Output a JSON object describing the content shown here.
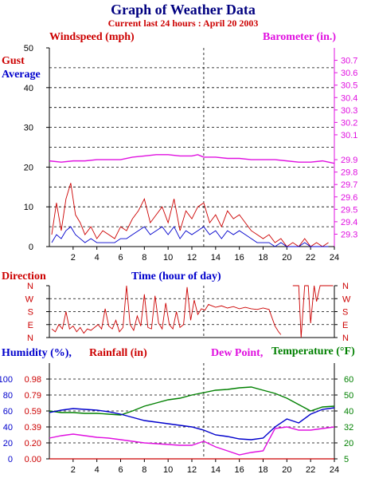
{
  "title": "Graph of Weather Data",
  "subtitle": "Current last 24 hours : April 20 2003",
  "colors": {
    "wind": "#cc0000",
    "avg": "#0000cc",
    "baro": "#e010e0",
    "humidity": "#0000cc",
    "rain": "#cc0000",
    "dew": "#e010e0",
    "temp": "#008000"
  },
  "chart_data": [
    {
      "type": "line",
      "title": "Windspeed / Barometer",
      "labels": {
        "left": "Windspeed (mph)",
        "right": "Barometer (in.)",
        "gust": "Gust",
        "average": "Average",
        "xlabel": "Time (hour of day)"
      },
      "x_ticks": [
        "2",
        "4",
        "6",
        "8",
        "10",
        "12",
        "14",
        "16",
        "18",
        "20",
        "22",
        "24"
      ],
      "y_left_ticks": [
        "0",
        "10",
        "20",
        "30",
        "40",
        "50"
      ],
      "y_right_ticks": [
        "29.3",
        "29.4",
        "29.5",
        "29.6",
        "29.7",
        "29.8",
        "29.9",
        "30.1",
        "30.2",
        "30.3",
        "30.4",
        "30.5",
        "30.6",
        "30.7"
      ],
      "xlim": [
        0,
        24
      ],
      "ylim_left": [
        0,
        50
      ],
      "ylim_right": [
        29.2,
        30.8
      ],
      "series": [
        {
          "name": "Gust",
          "x": [
            0.2,
            0.6,
            1.0,
            1.4,
            1.8,
            2.2,
            2.6,
            3.0,
            3.5,
            4.0,
            4.5,
            5.0,
            5.5,
            6.0,
            6.5,
            7.0,
            7.5,
            8.0,
            8.5,
            9.0,
            9.5,
            10.0,
            10.5,
            11.0,
            11.5,
            12.0,
            12.5,
            13.0,
            13.5,
            14.0,
            14.5,
            15.0,
            15.5,
            16.0,
            16.5,
            17.0,
            17.5,
            18.0,
            18.5,
            19.0,
            19.5,
            20.0,
            20.5,
            21.0,
            21.5,
            22.0,
            22.5,
            23.0,
            23.5
          ],
          "values": [
            3,
            11,
            4,
            12,
            16,
            8,
            6,
            3,
            5,
            2,
            4,
            3,
            2,
            5,
            4,
            7,
            9,
            12,
            6,
            8,
            10,
            6,
            12,
            4,
            9,
            7,
            10,
            11,
            6,
            8,
            5,
            9,
            7,
            8,
            6,
            4,
            3,
            2,
            3,
            1,
            2,
            0,
            1,
            0,
            2,
            0,
            1,
            0,
            1
          ]
        },
        {
          "name": "Average",
          "x": [
            0.2,
            0.6,
            1.0,
            1.4,
            1.8,
            2.2,
            2.6,
            3.0,
            3.5,
            4.0,
            4.5,
            5.0,
            5.5,
            6.0,
            6.5,
            7.0,
            7.5,
            8.0,
            8.5,
            9.0,
            9.5,
            10.0,
            10.5,
            11.0,
            11.5,
            12.0,
            12.5,
            13.0,
            13.5,
            14.0,
            14.5,
            15.0,
            15.5,
            16.0,
            16.5,
            17.0,
            17.5,
            18.0,
            18.5,
            19.0,
            19.5,
            20.0,
            20.5,
            21.0,
            21.5,
            22.0,
            22.5,
            23.0,
            23.5
          ],
          "values": [
            1,
            3,
            2,
            4,
            5,
            3,
            2,
            1,
            2,
            1,
            1,
            1,
            1,
            2,
            2,
            3,
            4,
            5,
            3,
            4,
            5,
            3,
            5,
            2,
            4,
            3,
            4,
            5,
            3,
            4,
            2,
            4,
            3,
            4,
            3,
            2,
            1,
            1,
            1,
            0,
            1,
            0,
            0,
            0,
            1,
            0,
            0,
            0,
            0
          ]
        },
        {
          "name": "Barometer",
          "x": [
            0,
            1,
            2,
            3,
            4,
            5,
            6,
            7,
            8,
            9,
            10,
            11,
            12,
            12.5,
            13,
            14,
            15,
            16,
            17,
            18,
            19,
            20,
            21,
            22,
            23,
            24
          ],
          "values": [
            29.89,
            29.88,
            29.89,
            29.89,
            29.9,
            29.9,
            29.9,
            29.92,
            29.93,
            29.94,
            29.94,
            29.93,
            29.93,
            29.94,
            29.92,
            29.92,
            29.91,
            29.91,
            29.9,
            29.9,
            29.9,
            29.89,
            29.88,
            29.88,
            29.89,
            29.87
          ]
        }
      ]
    },
    {
      "type": "line",
      "title": "Direction",
      "labels": {
        "left": "Direction",
        "xlabel": "Time (hour of day)"
      },
      "dir_ticks": [
        "N",
        "W",
        "S",
        "E",
        "N"
      ],
      "xlim": [
        0,
        24
      ],
      "ylim": [
        0,
        360
      ],
      "series": [
        {
          "name": "Direction",
          "x": [
            0.2,
            0.5,
            0.8,
            1.1,
            1.4,
            1.7,
            2.0,
            2.3,
            2.6,
            2.9,
            3.2,
            3.5,
            3.8,
            4.1,
            4.4,
            4.7,
            5.0,
            5.3,
            5.6,
            5.9,
            6.2,
            6.5,
            6.8,
            7.1,
            7.4,
            7.7,
            8.0,
            8.3,
            8.6,
            8.9,
            9.2,
            9.5,
            9.8,
            10.1,
            10.4,
            10.7,
            11.0,
            11.3,
            11.6,
            11.9,
            12.2,
            12.5,
            12.8,
            13.1,
            13.4,
            13.7,
            14.0,
            14.5,
            15.0,
            15.5,
            16.0,
            16.5,
            17.0,
            17.5,
            18.0,
            18.5,
            19.0,
            19.3,
            19.5
          ],
          "values": [
            60,
            40,
            90,
            60,
            180,
            60,
            80,
            40,
            70,
            30,
            60,
            50,
            70,
            90,
            60,
            200,
            80,
            60,
            120,
            40,
            70,
            360,
            90,
            50,
            150,
            80,
            300,
            70,
            60,
            290,
            100,
            60,
            240,
            90,
            60,
            180,
            70,
            90,
            350,
            120,
            260,
            160,
            200,
            190,
            230,
            220,
            210,
            220,
            205,
            215,
            200,
            210,
            200,
            195,
            205,
            195,
            80,
            40,
            20
          ]
        },
        {
          "name": "Direction (late)",
          "x": [
            20.5,
            20.8,
            21.0,
            21.2,
            21.5,
            21.8,
            22.0,
            22.3,
            22.5,
            22.8,
            23.0,
            23.3,
            23.6,
            23.9
          ],
          "values": [
            360,
            360,
            360,
            0,
            360,
            360,
            100,
            360,
            250,
            360,
            360,
            360,
            360,
            360
          ]
        }
      ]
    },
    {
      "type": "line",
      "title": "Humidity / Rainfall / Dew Point / Temperature",
      "labels": {
        "humidity": "Humidity (%),",
        "rainfall": "Rainfall (in)",
        "dew": "Dew Point,",
        "temp": "Temperature (°F)"
      },
      "x_ticks": [
        "2",
        "4",
        "6",
        "8",
        "10",
        "12",
        "14",
        "16",
        "18",
        "20",
        "22",
        "24"
      ],
      "humidity_ticks": [
        "0",
        "20",
        "40",
        "60",
        "80",
        "100"
      ],
      "rain_ticks": [
        "0.00",
        "0.20",
        "0.39",
        "0.59",
        "0.79",
        "0.98"
      ],
      "temp_ticks": [
        "5",
        "20",
        "32",
        "40",
        "50",
        "60"
      ],
      "xlim": [
        0,
        24
      ],
      "ylim_humidity": [
        0,
        120
      ],
      "series": [
        {
          "name": "Temperature",
          "x": [
            0,
            1,
            2,
            3,
            4,
            5,
            6,
            7,
            8,
            9,
            10,
            11,
            12,
            13,
            14,
            15,
            16,
            17,
            18,
            19,
            20,
            21,
            22,
            23,
            24
          ],
          "values": [
            60,
            58,
            58,
            57,
            57,
            56,
            55,
            60,
            66,
            70,
            74,
            76,
            80,
            83,
            86,
            87,
            89,
            90,
            86,
            82,
            76,
            68,
            60,
            65,
            66
          ]
        },
        {
          "name": "Humidity",
          "x": [
            0,
            1,
            2,
            3,
            4,
            5,
            6,
            7,
            8,
            9,
            10,
            11,
            12,
            13,
            14,
            15,
            16,
            17,
            18,
            19,
            20,
            21,
            22,
            23,
            24
          ],
          "values": [
            58,
            61,
            63,
            62,
            61,
            59,
            56,
            52,
            48,
            46,
            44,
            42,
            40,
            36,
            30,
            28,
            25,
            24,
            26,
            40,
            50,
            45,
            56,
            62,
            64
          ]
        },
        {
          "name": "Dew Point",
          "x": [
            0,
            1,
            2,
            3,
            4,
            5,
            6,
            7,
            8,
            9,
            10,
            11,
            12,
            13,
            14,
            15,
            16,
            17,
            18,
            19,
            20,
            21,
            22,
            23,
            24
          ],
          "values": [
            26,
            29,
            31,
            29,
            27,
            26,
            24,
            22,
            20,
            19,
            18,
            17,
            17,
            22,
            15,
            10,
            5,
            8,
            10,
            38,
            40,
            36,
            36,
            38,
            40
          ]
        },
        {
          "name": "Rainfall",
          "x": [
            0,
            19,
            19.2,
            24
          ],
          "values": [
            0,
            0,
            0,
            0
          ]
        }
      ]
    }
  ]
}
